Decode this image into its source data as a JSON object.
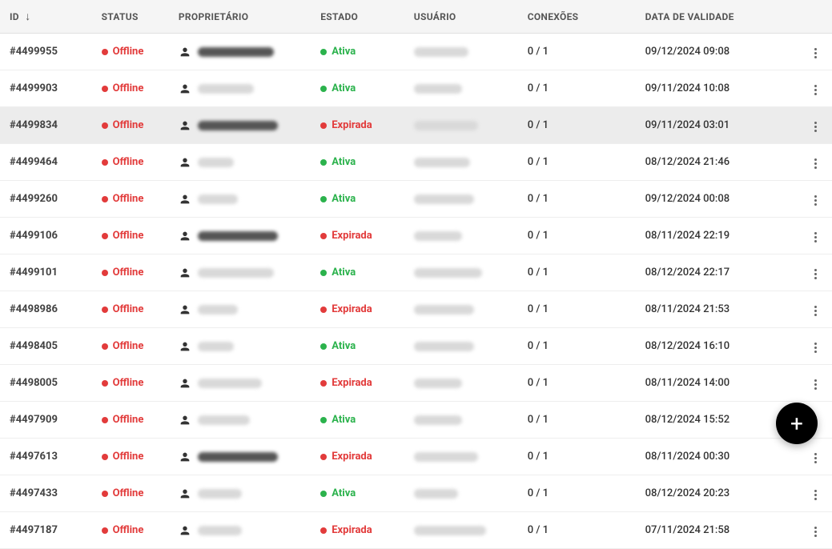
{
  "columns": {
    "id": "ID",
    "status": "STATUS",
    "owner": "PROPRIETÁRIO",
    "state": "ESTADO",
    "user": "USUÁRIO",
    "connections": "CONEXÕES",
    "validity": "DATA DE VALIDADE"
  },
  "sort_indicator": "↓",
  "status_labels": {
    "offline": "Offline"
  },
  "state_labels": {
    "active": "Ativa",
    "expired": "Expirada"
  },
  "colors": {
    "offline_dot": "#e23b3b",
    "active_dot": "#2bb24c",
    "expired_dot": "#e23b3b",
    "header_bg": "#f5f5f5",
    "highlight_bg": "#ececec",
    "fab_bg": "#000000"
  },
  "rows": [
    {
      "id": "#4499955",
      "status": "offline",
      "state": "active",
      "owner_blur_w": 95,
      "owner_dark": true,
      "user_blur_w": 68,
      "conn": "0 / 1",
      "date": "09/12/2024 09:08",
      "highlight": false
    },
    {
      "id": "#4499903",
      "status": "offline",
      "state": "active",
      "owner_blur_w": 70,
      "owner_dark": false,
      "user_blur_w": 60,
      "conn": "0 / 1",
      "date": "09/11/2024 10:08",
      "highlight": false
    },
    {
      "id": "#4499834",
      "status": "offline",
      "state": "expired",
      "owner_blur_w": 100,
      "owner_dark": true,
      "user_blur_w": 80,
      "conn": "0 / 1",
      "date": "09/11/2024 03:01",
      "highlight": true
    },
    {
      "id": "#4499464",
      "status": "offline",
      "state": "active",
      "owner_blur_w": 45,
      "owner_dark": false,
      "user_blur_w": 70,
      "conn": "0 / 1",
      "date": "08/12/2024 21:46",
      "highlight": false
    },
    {
      "id": "#4499260",
      "status": "offline",
      "state": "active",
      "owner_blur_w": 50,
      "owner_dark": false,
      "user_blur_w": 75,
      "conn": "0 / 1",
      "date": "09/12/2024 00:08",
      "highlight": false
    },
    {
      "id": "#4499106",
      "status": "offline",
      "state": "expired",
      "owner_blur_w": 100,
      "owner_dark": true,
      "user_blur_w": 60,
      "conn": "0 / 1",
      "date": "08/11/2024 22:19",
      "highlight": false
    },
    {
      "id": "#4499101",
      "status": "offline",
      "state": "active",
      "owner_blur_w": 95,
      "owner_dark": false,
      "user_blur_w": 85,
      "conn": "0 / 1",
      "date": "08/12/2024 22:17",
      "highlight": false
    },
    {
      "id": "#4498986",
      "status": "offline",
      "state": "expired",
      "owner_blur_w": 50,
      "owner_dark": false,
      "user_blur_w": 75,
      "conn": "0 / 1",
      "date": "08/11/2024 21:53",
      "highlight": false
    },
    {
      "id": "#4498405",
      "status": "offline",
      "state": "active",
      "owner_blur_w": 45,
      "owner_dark": false,
      "user_blur_w": 75,
      "conn": "0 / 1",
      "date": "08/12/2024 16:10",
      "highlight": false
    },
    {
      "id": "#4498005",
      "status": "offline",
      "state": "expired",
      "owner_blur_w": 80,
      "owner_dark": false,
      "user_blur_w": 60,
      "conn": "0 / 1",
      "date": "08/11/2024 14:00",
      "highlight": false
    },
    {
      "id": "#4497909",
      "status": "offline",
      "state": "active",
      "owner_blur_w": 65,
      "owner_dark": false,
      "user_blur_w": 60,
      "conn": "0 / 1",
      "date": "08/12/2024 15:52",
      "highlight": false
    },
    {
      "id": "#4497613",
      "status": "offline",
      "state": "expired",
      "owner_blur_w": 100,
      "owner_dark": true,
      "user_blur_w": 80,
      "conn": "0 / 1",
      "date": "08/11/2024 00:30",
      "highlight": false
    },
    {
      "id": "#4497433",
      "status": "offline",
      "state": "active",
      "owner_blur_w": 55,
      "owner_dark": false,
      "user_blur_w": 55,
      "conn": "0 / 1",
      "date": "08/12/2024 20:23",
      "highlight": false
    },
    {
      "id": "#4497187",
      "status": "offline",
      "state": "expired",
      "owner_blur_w": 55,
      "owner_dark": false,
      "user_blur_w": 90,
      "conn": "0 / 1",
      "date": "07/11/2024 21:58",
      "highlight": false
    }
  ],
  "fab_label": "+"
}
